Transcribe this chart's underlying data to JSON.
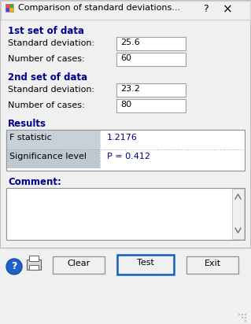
{
  "title": "Comparison of standard deviations...",
  "title_question": "?",
  "bg_color": "#f0f0f0",
  "section1_label": "1st set of data",
  "field1_label": "Standard deviation:",
  "field1_value": "25.6",
  "field2_label": "Number of cases:",
  "field2_value": "60",
  "section2_label": "2nd set of data",
  "field3_label": "Standard deviation:",
  "field3_value": "23.2",
  "field4_label": "Number of cases:",
  "field4_value": "80",
  "results_label": "Results",
  "result_row1_label": "F statistic",
  "result_row1_value": "1.2176",
  "result_row2_label": "Significance level",
  "result_row2_value": "P = 0.412",
  "comment_label": "Comment:",
  "btn_clear": "Clear",
  "btn_test": "Test",
  "btn_exit": "Exit",
  "section_color": "#00008B",
  "label_color": "#000000",
  "value_color": "#000080",
  "input_box_bg": "#ffffff",
  "table_row1_bg": "#c8d0d8",
  "table_row2_bg": "#bec8d0",
  "test_btn_border": "#1060c0",
  "outer_border": "#c0c0c0",
  "separator_color": "#c0c0c0"
}
